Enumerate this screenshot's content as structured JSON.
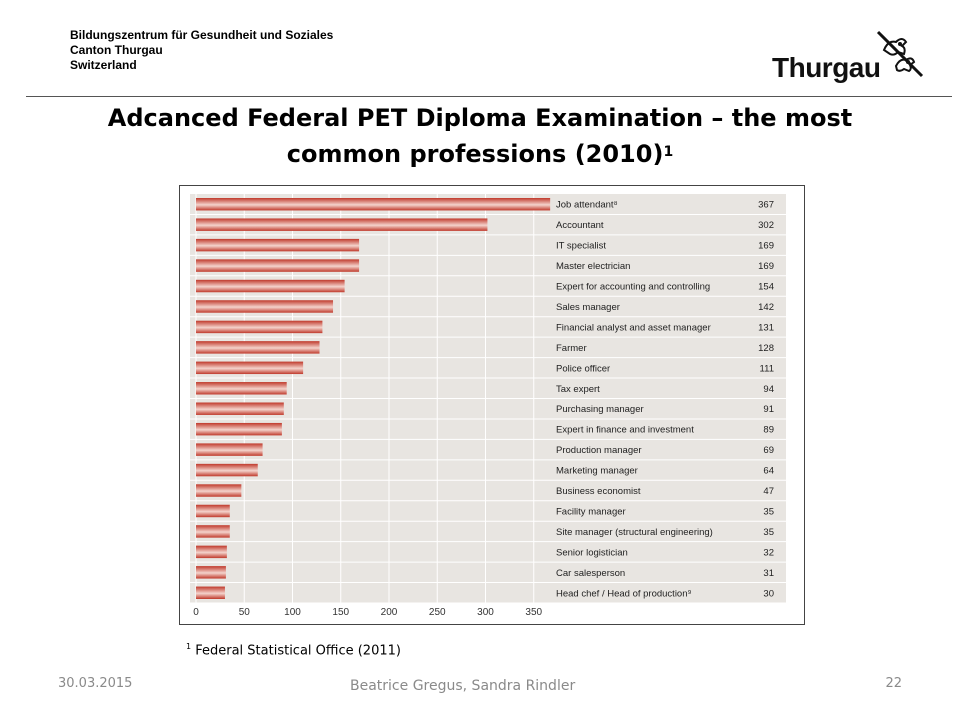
{
  "header": {
    "org_line1": "Bildungszentrum für Gesundheit und Soziales",
    "org_line2": "Canton Thurgau",
    "org_line3": "Switzerland",
    "logo_text": "Thurgau"
  },
  "slide": {
    "title_line1": "Adcanced Federal PET Diploma Examination – the most",
    "title_line2": "common professions (2010)",
    "title_sup": "1",
    "footnote_sup": "1",
    "footnote_text": " Federal Statistical Office (2011)"
  },
  "footer": {
    "date": "30.03.2015",
    "authors": "Beatrice Gregus, Sandra Rindler",
    "page_number": "22"
  },
  "colors": {
    "bar_dark": "#c0392b",
    "bar_light": "#f4d3cc",
    "panel_bg": "#e8e5e1",
    "grid": "#ffffff"
  },
  "chart_data": {
    "type": "bar",
    "orientation": "horizontal",
    "categories": [
      "Job attendant⁸",
      "Accountant",
      "IT specialist",
      "Master electrician",
      "Expert for accounting and controlling",
      "Sales manager",
      "Financial analyst and asset manager",
      "Farmer",
      "Police officer",
      "Tax expert",
      "Purchasing manager",
      "Expert in finance and investment",
      "Production manager",
      "Marketing manager",
      "Business economist",
      "Facility manager",
      "Site manager (structural engineering)",
      "Senior logistician",
      "Car salesperson",
      "Head chef / Head of production⁹"
    ],
    "values": [
      367,
      302,
      169,
      169,
      154,
      142,
      131,
      128,
      111,
      94,
      91,
      89,
      69,
      64,
      47,
      35,
      35,
      32,
      31,
      30
    ],
    "value_labels": [
      "367",
      "302",
      "169",
      "169",
      "154",
      "142",
      "131",
      "128",
      "111",
      "94",
      "91",
      "89",
      "69",
      "64",
      "47",
      "35",
      "35",
      "32",
      "31",
      "30"
    ],
    "xlim": [
      0,
      370
    ],
    "xticks": [
      "0",
      "50",
      "100",
      "150",
      "200",
      "250",
      "300",
      "350"
    ],
    "xtick_values": [
      0,
      50,
      100,
      150,
      200,
      250,
      300,
      350
    ],
    "grid": true,
    "title": "",
    "xlabel": "",
    "ylabel": ""
  }
}
